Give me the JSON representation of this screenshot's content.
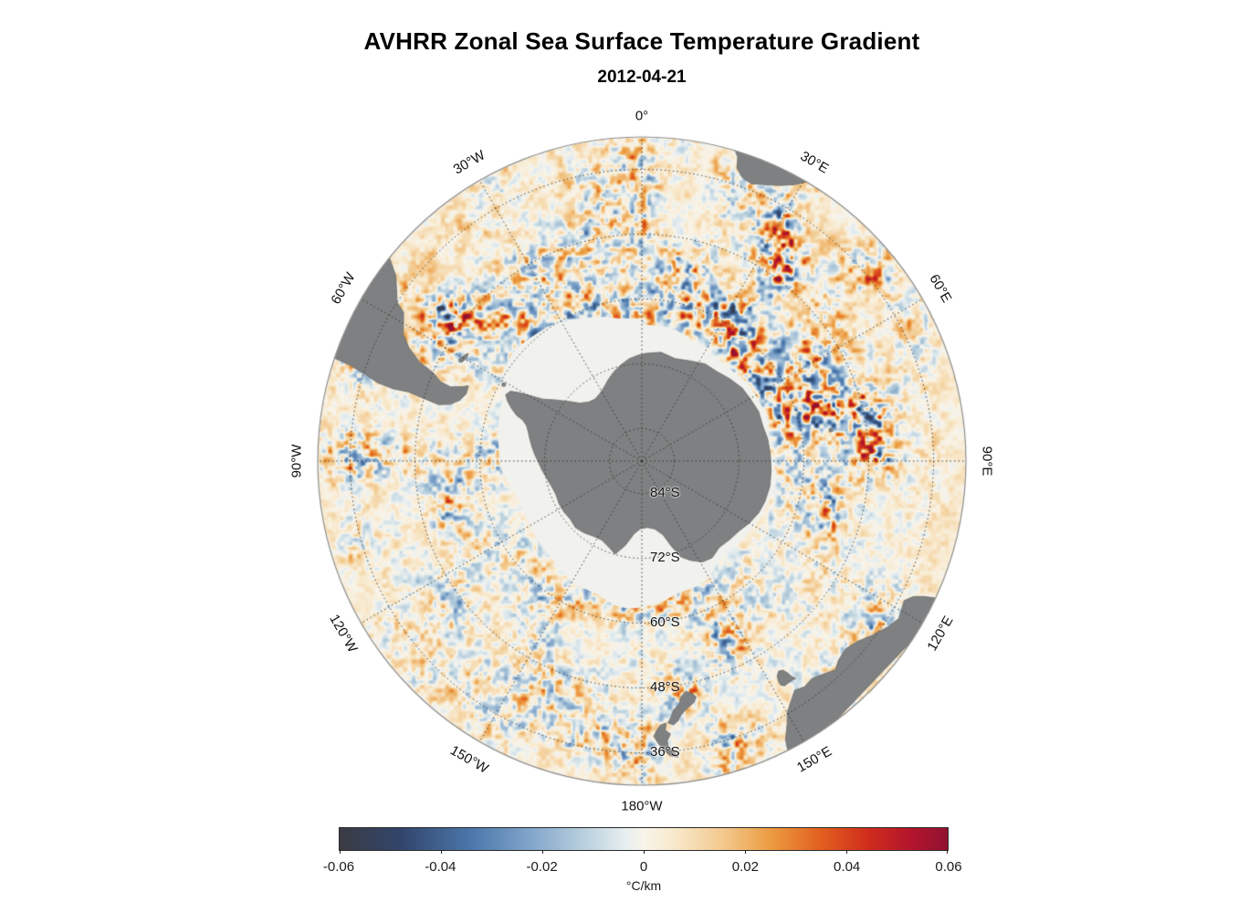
{
  "figure": {
    "title": "AVHRR Zonal Sea Surface Temperature Gradient",
    "subtitle": "2012-04-21"
  },
  "map": {
    "meridian_labels": [
      {
        "text": "0°",
        "deg": 0
      },
      {
        "text": "30°E",
        "deg": 30
      },
      {
        "text": "60°E",
        "deg": 60
      },
      {
        "text": "90°E",
        "deg": 90
      },
      {
        "text": "120°E",
        "deg": 120
      },
      {
        "text": "150°E",
        "deg": 150
      },
      {
        "text": "180°W",
        "deg": 180
      },
      {
        "text": "150°W",
        "deg": 210
      },
      {
        "text": "120°W",
        "deg": 240
      },
      {
        "text": "90°W",
        "deg": 270
      },
      {
        "text": "60°W",
        "deg": 300
      },
      {
        "text": "30°W",
        "deg": 330
      }
    ],
    "latitude_labels": [
      {
        "text": "84°S",
        "lat": -84
      },
      {
        "text": "72°S",
        "lat": -72
      },
      {
        "text": "60°S",
        "lat": -60
      },
      {
        "text": "48°S",
        "lat": -48
      },
      {
        "text": "36°S",
        "lat": -36
      }
    ],
    "land_color": "#7f8081",
    "ice_color": "#f1f1ee",
    "ocean_base_color": "#f8f4ea",
    "grid_color": "#2d2d2d",
    "outer_ring_color": "#8f8f8f"
  },
  "colorbar": {
    "min": -0.06,
    "max": 0.06,
    "ticks": [
      "-0.06",
      "-0.04",
      "-0.02",
      "0",
      "0.02",
      "0.04",
      "0.06"
    ],
    "unit_label": "°C/km",
    "stops": [
      {
        "t": 0.0,
        "color": "#3b3b43"
      },
      {
        "t": 0.1,
        "color": "#31456b"
      },
      {
        "t": 0.22,
        "color": "#4d79ad"
      },
      {
        "t": 0.32,
        "color": "#85a8cc"
      },
      {
        "t": 0.4,
        "color": "#b8cfdd"
      },
      {
        "t": 0.47,
        "color": "#e6eef0"
      },
      {
        "t": 0.5,
        "color": "#f8f4ea"
      },
      {
        "t": 0.55,
        "color": "#f8e9cd"
      },
      {
        "t": 0.63,
        "color": "#f3c98e"
      },
      {
        "t": 0.71,
        "color": "#ec9b40"
      },
      {
        "t": 0.79,
        "color": "#e2601f"
      },
      {
        "t": 0.87,
        "color": "#cf2c1d"
      },
      {
        "t": 0.94,
        "color": "#b3152c"
      },
      {
        "t": 1.0,
        "color": "#911230"
      }
    ]
  }
}
